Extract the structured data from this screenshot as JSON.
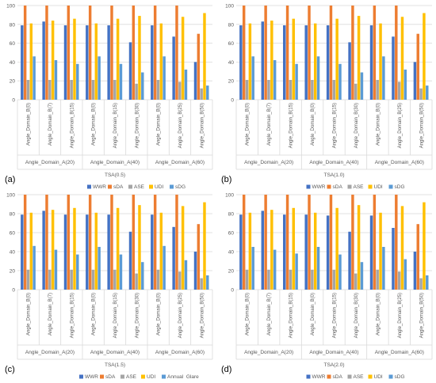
{
  "colors": {
    "WWR": "#4472C4",
    "sDA": "#ED7D31",
    "ASE": "#A5A5A5",
    "UDI": "#FFC000",
    "sDG": "#5B9BD5",
    "grid": "#D9D9D9",
    "text": "#595959"
  },
  "panel_letters": [
    "(a)",
    "(b)",
    "(c)",
    "(d)"
  ],
  "chart_data": [
    {
      "type": "bar",
      "title": "",
      "ylim": [
        0,
        100
      ],
      "yticks": [
        0,
        20,
        40,
        60,
        80,
        100
      ],
      "grid": true,
      "categories": [
        "Angle_Domain_B(0)",
        "Angle_Domain_B(7)",
        "Angle_Domain_B(15)",
        "Angle_Domain_B(0)",
        "Angle_Domain_B(15)",
        "Angle_Domain_B(30)",
        "Angle_Domain_B(0)",
        "Angle_Domain_B(25)",
        "Angle_Domain_B(50)"
      ],
      "groups": [
        {
          "label": "Angle_Domain_A(20)",
          "count": 3
        },
        {
          "label": "Angle_Domain_A(40)",
          "count": 3
        },
        {
          "label": "Angle_Domain_A(60)",
          "count": 3
        }
      ],
      "xlabel": "TSA(0.5)",
      "legend_position": "bottom",
      "series": [
        {
          "name": "WWR",
          "values": [
            79,
            83,
            79,
            79,
            79,
            61,
            79,
            67,
            40
          ]
        },
        {
          "name": "sDA",
          "values": [
            100,
            100,
            100,
            100,
            100,
            100,
            100,
            100,
            70
          ]
        },
        {
          "name": "ASE",
          "values": [
            21,
            21,
            21,
            21,
            21,
            17,
            21,
            19,
            12
          ]
        },
        {
          "name": "UDI",
          "values": [
            81,
            84,
            86,
            81,
            86,
            89,
            81,
            88,
            92
          ]
        },
        {
          "name": "sDG",
          "values": [
            46,
            42,
            38,
            46,
            38,
            29,
            46,
            32,
            15
          ]
        }
      ]
    },
    {
      "type": "bar",
      "title": "",
      "ylim": [
        0,
        100
      ],
      "yticks": [
        0,
        20,
        40,
        60,
        80,
        100
      ],
      "grid": true,
      "categories": [
        "Angle_Domain_B(0)",
        "Angle_Domain_B(7)",
        "Angle_Domain_B(15)",
        "Angle_Domain_B(0)",
        "Angle_Domain_B(15)",
        "Angle_Domain_B(30)",
        "Angle_Domain_B(0)",
        "Angle_Domain_B(25)",
        "Angle_Domain_B(50)"
      ],
      "groups": [
        {
          "label": "Angle_Domain_A(20)",
          "count": 3
        },
        {
          "label": "Angle_Domain_A(40)",
          "count": 3
        },
        {
          "label": "Angle_Domain_A(60)",
          "count": 3
        }
      ],
      "xlabel": "TSA(1.0)",
      "legend_position": "bottom",
      "series": [
        {
          "name": "WWR",
          "values": [
            79,
            83,
            79,
            79,
            79,
            61,
            79,
            67,
            40
          ]
        },
        {
          "name": "sDA",
          "values": [
            100,
            100,
            100,
            100,
            100,
            100,
            100,
            100,
            70
          ]
        },
        {
          "name": "ASE",
          "values": [
            21,
            21,
            21,
            21,
            21,
            17,
            21,
            19,
            12
          ]
        },
        {
          "name": "UDI",
          "values": [
            81,
            84,
            86,
            81,
            86,
            89,
            81,
            88,
            92
          ]
        },
        {
          "name": "sDG",
          "values": [
            46,
            42,
            38,
            46,
            38,
            29,
            46,
            32,
            15
          ]
        }
      ]
    },
    {
      "type": "bar",
      "title": "",
      "ylim": [
        0,
        100
      ],
      "yticks": [
        0,
        20,
        40,
        60,
        80,
        100
      ],
      "grid": true,
      "categories": [
        "Angle_Domain_B(0)",
        "Angle_Domain_B(7)",
        "Angle_Domain_B(15)",
        "Angle_Domain_B(0)",
        "Angle_Domain_B(15)",
        "Angle_Domain_B(30)",
        "Angle_Domain_B(0)",
        "Angle_Domain_B(25)",
        "Angle_Domain_B(50)"
      ],
      "groups": [
        {
          "label": "Angle_Domain_A(20)",
          "count": 3
        },
        {
          "label": "Angle_Domain_A(40)",
          "count": 3
        },
        {
          "label": "Angle_Domain_A(60)",
          "count": 3
        }
      ],
      "xlabel": "TSA(1.5)",
      "legend_position": "bottom",
      "series": [
        {
          "name": "WWR",
          "values": [
            79,
            83,
            79,
            79,
            79,
            61,
            79,
            66,
            40
          ]
        },
        {
          "name": "sDA",
          "values": [
            100,
            100,
            100,
            100,
            100,
            100,
            100,
            100,
            69
          ]
        },
        {
          "name": "ASE",
          "values": [
            21,
            21,
            21,
            21,
            21,
            17,
            21,
            19,
            12
          ]
        },
        {
          "name": "UDI",
          "values": [
            81,
            84,
            86,
            81,
            86,
            89,
            81,
            88,
            92
          ]
        },
        {
          "name": "Annual_Glare",
          "values": [
            46,
            42,
            37,
            45,
            37,
            29,
            46,
            31,
            15
          ]
        }
      ]
    },
    {
      "type": "bar",
      "title": "",
      "ylim": [
        0,
        100
      ],
      "yticks": [
        0,
        20,
        40,
        60,
        80,
        100
      ],
      "grid": true,
      "categories": [
        "Angle_Domain_B(0)",
        "Angle_Domain_B(7)",
        "Angle_Domain_B(15)",
        "Angle_Domain_B(0)",
        "Angle_Domain_B(15)",
        "Angle_Domain_B(30)",
        "Angle_Domain_B(0)",
        "Angle_Domain_B(25)",
        "Angle_Domain_B(50)"
      ],
      "groups": [
        {
          "label": "Angle_Domain_A(20)",
          "count": 3
        },
        {
          "label": "Angle_Domain_A(40)",
          "count": 3
        },
        {
          "label": "Angle_Domain_A(60)",
          "count": 3
        }
      ],
      "xlabel": "TSA(2.0)",
      "legend_position": "bottom",
      "series": [
        {
          "name": "WWR",
          "values": [
            79,
            83,
            79,
            79,
            78,
            61,
            78,
            65,
            40
          ]
        },
        {
          "name": "sDA",
          "values": [
            100,
            100,
            100,
            100,
            100,
            100,
            100,
            100,
            69
          ]
        },
        {
          "name": "ASE",
          "values": [
            21,
            21,
            21,
            21,
            21,
            17,
            21,
            19,
            12
          ]
        },
        {
          "name": "UDI",
          "values": [
            81,
            84,
            86,
            81,
            86,
            89,
            81,
            88,
            92
          ]
        },
        {
          "name": "sDG",
          "values": [
            45,
            42,
            38,
            45,
            37,
            29,
            45,
            32,
            15
          ]
        }
      ]
    }
  ]
}
